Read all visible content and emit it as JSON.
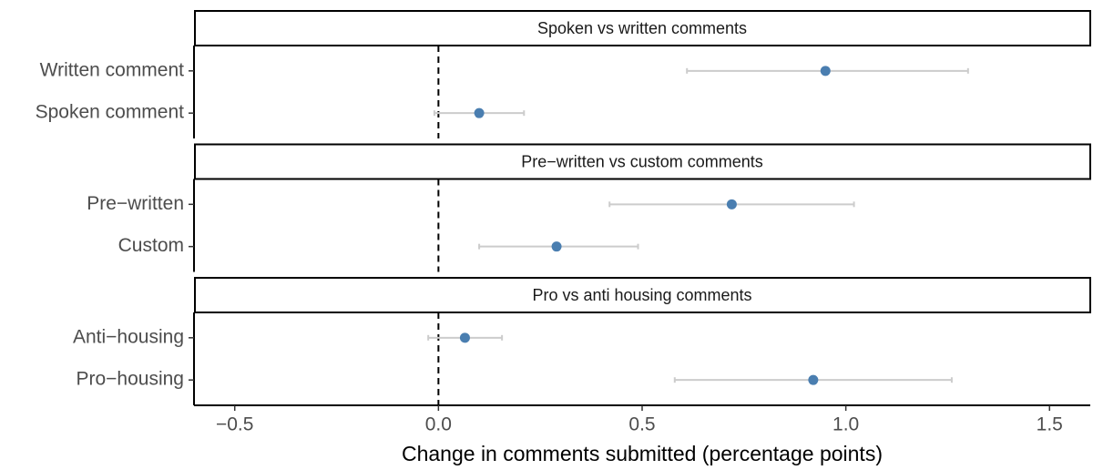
{
  "chart_data": {
    "type": "dot",
    "xlabel": "Change in comments submitted (percentage points)",
    "xlim": [
      -0.6,
      1.6
    ],
    "xticks": [
      {
        "value": -0.5,
        "label": "−0.5"
      },
      {
        "value": 0,
        "label": "0.0"
      },
      0.5,
      {
        "value": 1,
        "label": "1.0"
      },
      1.5
    ],
    "reference_line": 0,
    "color": "#4a7eb0",
    "error_color": "#cccccc",
    "panels": [
      {
        "title": "Spoken vs written comments",
        "categories": [
          "Written comment",
          "Spoken comment"
        ],
        "values": [
          0.95,
          0.1
        ],
        "lower": [
          0.61,
          -0.01
        ],
        "upper": [
          1.3,
          0.21
        ]
      },
      {
        "title": "Pre−written vs custom comments",
        "categories": [
          "Pre−written",
          "Custom"
        ],
        "values": [
          0.72,
          0.29
        ],
        "lower": [
          0.42,
          0.1
        ],
        "upper": [
          1.02,
          0.49
        ]
      },
      {
        "title": "Pro vs anti housing comments",
        "categories": [
          "Anti−housing",
          "Pro−housing"
        ],
        "values": [
          0.065,
          0.92
        ],
        "lower": [
          -0.025,
          0.58
        ],
        "upper": [
          0.156,
          1.26
        ]
      }
    ]
  }
}
